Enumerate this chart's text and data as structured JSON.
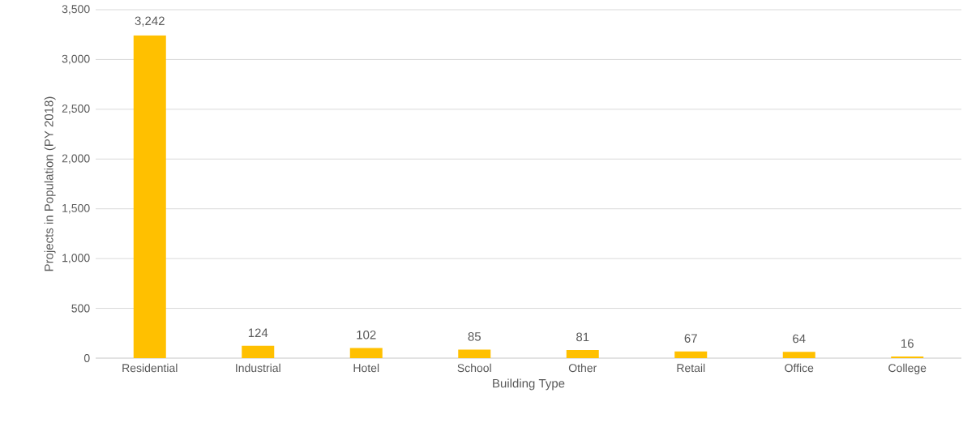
{
  "chart_data": {
    "type": "bar",
    "xlabel": "Building Type",
    "ylabel": "Projects in Population (PY 2018)",
    "categories": [
      "Residential",
      "Industrial",
      "Hotel",
      "School",
      "Other",
      "Retail",
      "Office",
      "College"
    ],
    "values": [
      3242,
      124,
      102,
      85,
      81,
      67,
      64,
      16
    ],
    "value_labels": [
      "3,242",
      "124",
      "102",
      "85",
      "81",
      "67",
      "64",
      "16"
    ],
    "color": "#ffc000",
    "ylim": [
      0,
      3500
    ],
    "yticks": [
      0,
      500,
      {
        "value": 1000,
        "label": "1,000"
      },
      {
        "value": 1500,
        "label": "1,500"
      },
      {
        "value": 2000,
        "label": "2,000"
      },
      {
        "value": 2500,
        "label": "2,500"
      },
      {
        "value": 3000,
        "label": "3,000"
      },
      {
        "value": 3500,
        "label": "3,500"
      }
    ],
    "grid": "y"
  }
}
